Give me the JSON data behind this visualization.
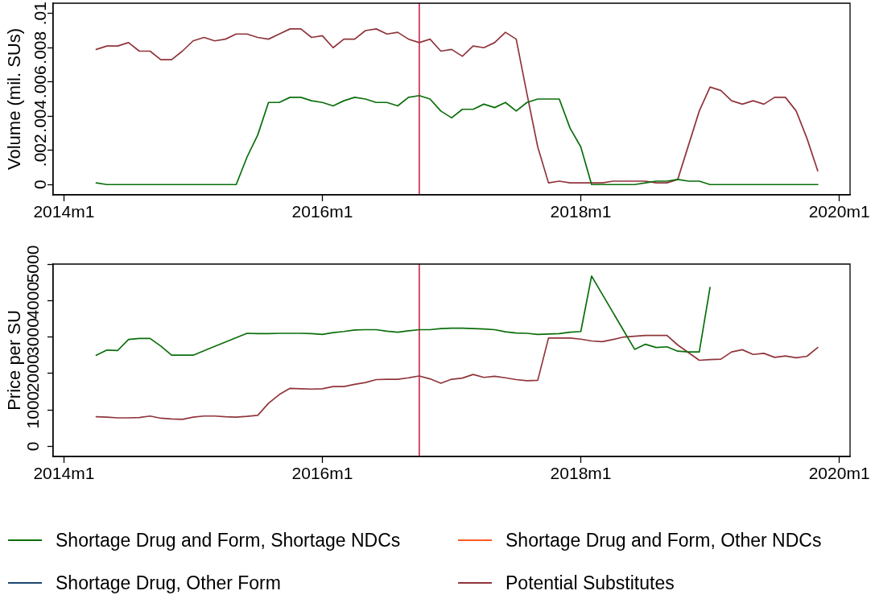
{
  "chart_data": [
    {
      "type": "line",
      "ylabel": "Volume (mil. SUs)",
      "x": [
        "2014-04",
        "2014-05",
        "2014-06",
        "2014-07",
        "2014-08",
        "2014-09",
        "2014-10",
        "2014-11",
        "2014-12",
        "2015-01",
        "2015-02",
        "2015-03",
        "2015-04",
        "2015-05",
        "2015-06",
        "2015-07",
        "2015-08",
        "2015-09",
        "2015-10",
        "2015-11",
        "2015-12",
        "2016-01",
        "2016-02",
        "2016-03",
        "2016-04",
        "2016-05",
        "2016-06",
        "2016-07",
        "2016-08",
        "2016-09",
        "2016-10",
        "2016-11",
        "2016-12",
        "2017-01",
        "2017-02",
        "2017-03",
        "2017-04",
        "2017-05",
        "2017-06",
        "2017-07",
        "2017-08",
        "2017-09",
        "2017-10",
        "2017-11",
        "2017-12",
        "2018-01",
        "2018-02",
        "2018-03",
        "2018-04",
        "2018-05",
        "2018-06",
        "2018-07",
        "2018-08",
        "2018-09",
        "2018-10",
        "2018-11",
        "2018-12",
        "2019-01",
        "2019-02",
        "2019-03",
        "2019-04",
        "2019-05",
        "2019-06",
        "2019-07",
        "2019-08",
        "2019-09",
        "2019-10",
        "2019-11"
      ],
      "xlim": [
        "2013-12",
        "2020-02"
      ],
      "xticks": [
        {
          "value": "2014-01",
          "label": "2014m1"
        },
        {
          "value": "2016-01",
          "label": "2016m1"
        },
        {
          "value": "2018-01",
          "label": "2018m1"
        },
        {
          "value": "2020-01",
          "label": "2020m1"
        }
      ],
      "ylim": [
        -0.0006,
        0.0106
      ],
      "yticks": [
        0,
        {
          "value": 0.002,
          "label": ".002"
        },
        {
          "value": 0.004,
          "label": ".004"
        },
        {
          "value": 0.006,
          "label": ".006"
        },
        {
          "value": 0.008,
          "label": ".008"
        },
        {
          "value": 0.01,
          "label": ".01"
        }
      ],
      "ref_lines": [
        {
          "axis": "x",
          "value": "2016-10",
          "color": "#c8143c"
        }
      ],
      "series": [
        {
          "color": "#0a6e0a",
          "values": [
            0.0001,
            0,
            0,
            0,
            0,
            0,
            0,
            0,
            0,
            0,
            0,
            0,
            0,
            0,
            0.0016,
            0.0029,
            0.0048,
            0.0048,
            0.0051,
            0.0051,
            0.0049,
            0.0048,
            0.0046,
            0.0049,
            0.0051,
            0.005,
            0.0048,
            0.0048,
            0.0046,
            0.0051,
            0.0052,
            0.005,
            0.0043,
            0.0039,
            0.0044,
            0.0044,
            0.0047,
            0.0045,
            0.0048,
            0.0043,
            0.0048,
            0.005,
            0.005,
            0.005,
            0.0033,
            0.0022,
            0,
            0,
            0,
            0,
            0,
            0.0001,
            0.0002,
            0.0002,
            0.0003,
            0.0002,
            0.0002,
            0,
            0,
            0,
            0,
            0,
            0,
            0,
            0,
            0,
            0,
            0
          ]
        },
        {
          "color": "#90353b",
          "values": [
            0.0079,
            0.0081,
            0.0081,
            0.0083,
            0.0078,
            0.0078,
            0.0073,
            0.0073,
            0.0078,
            0.0084,
            0.0086,
            0.0084,
            0.0085,
            0.0088,
            0.0088,
            0.0086,
            0.0085,
            0.0088,
            0.0091,
            0.0091,
            0.0086,
            0.0087,
            0.008,
            0.0085,
            0.0085,
            0.009,
            0.0091,
            0.0088,
            0.0089,
            0.0085,
            0.0083,
            0.0085,
            0.0078,
            0.0079,
            0.0075,
            0.0081,
            0.008,
            0.0083,
            0.0089,
            0.0085,
            0.0053,
            0.0022,
            0.0001,
            0.0002,
            0.0001,
            0.0001,
            0.0001,
            0.0001,
            0.0002,
            0.0002,
            0.0002,
            0.0002,
            0.0001,
            0.0001,
            0.0003,
            0.0023,
            0.0043,
            0.0057,
            0.0055,
            0.0049,
            0.0047,
            0.0049,
            0.0047,
            0.0051,
            0.0051,
            0.0043,
            0.0027,
            0.0008
          ]
        }
      ]
    },
    {
      "type": "line",
      "ylabel": "Price per SU",
      "legend": "bottom",
      "x": [
        "2014-04",
        "2014-05",
        "2014-06",
        "2014-07",
        "2014-08",
        "2014-09",
        "2014-10",
        "2014-11",
        "2014-12",
        "2015-01",
        "2015-02",
        "2015-03",
        "2015-04",
        "2015-05",
        "2015-06",
        "2015-07",
        "2015-08",
        "2015-09",
        "2015-10",
        "2015-11",
        "2015-12",
        "2016-01",
        "2016-02",
        "2016-03",
        "2016-04",
        "2016-05",
        "2016-06",
        "2016-07",
        "2016-08",
        "2016-09",
        "2016-10",
        "2016-11",
        "2016-12",
        "2017-01",
        "2017-02",
        "2017-03",
        "2017-04",
        "2017-05",
        "2017-06",
        "2017-07",
        "2017-08",
        "2017-09",
        "2017-10",
        "2017-11",
        "2017-12",
        "2018-01",
        "2018-02",
        "2018-03",
        "2018-04",
        "2018-05",
        "2018-06",
        "2018-07",
        "2018-08",
        "2018-09",
        "2018-10",
        "2018-11",
        "2018-12",
        "2019-01",
        "2019-02",
        "2019-03",
        "2019-04",
        "2019-05",
        "2019-06",
        "2019-07",
        "2019-08",
        "2019-09",
        "2019-10",
        "2019-11"
      ],
      "xlim": [
        "2013-12",
        "2020-02"
      ],
      "xticks": [
        {
          "value": "2014-01",
          "label": "2014m1"
        },
        {
          "value": "2016-01",
          "label": "2016m1"
        },
        {
          "value": "2018-01",
          "label": "2018m1"
        },
        {
          "value": "2020-01",
          "label": "2020m1"
        }
      ],
      "ylim": [
        -280,
        5000
      ],
      "yticks": [
        0,
        1000,
        2000,
        3000,
        4000,
        5000
      ],
      "ref_lines": [
        {
          "axis": "x",
          "value": "2016-10",
          "color": "#c8143c"
        }
      ],
      "series": [
        {
          "name": "Shortage Drug and Form, Shortage NDCs",
          "color": "#0a6e0a",
          "values": [
            2500,
            2640,
            2630,
            2930,
            2960,
            2960,
            2750,
            2500,
            2500,
            2500,
            null,
            null,
            null,
            null,
            3100,
            3090,
            3090,
            3100,
            3100,
            3100,
            3090,
            3070,
            3120,
            3150,
            3190,
            3200,
            3200,
            3160,
            3130,
            3170,
            3200,
            3200,
            3230,
            3240,
            3240,
            3230,
            3220,
            3200,
            3140,
            3110,
            3100,
            3070,
            3080,
            3090,
            3130,
            3150,
            4670,
            null,
            null,
            null,
            2660,
            2800,
            2710,
            2730,
            2610,
            2590,
            2590,
            4360,
            null,
            null,
            null,
            null,
            null,
            null,
            null,
            null,
            null,
            null
          ]
        },
        {
          "name": "Shortage Drug and Form, Other NDCs",
          "color": "#ff5a1f",
          "values": [
            null,
            null,
            null,
            null,
            null,
            null,
            null,
            null,
            null,
            null,
            null,
            null,
            null,
            null,
            null,
            null,
            null,
            null,
            null,
            null,
            null,
            null,
            null,
            null,
            null,
            null,
            null,
            null,
            null,
            null,
            null,
            null,
            null,
            null,
            null,
            null,
            null,
            null,
            null,
            null,
            null,
            null,
            null,
            null,
            null,
            null,
            null,
            null,
            null,
            null,
            null,
            null,
            null,
            null,
            null,
            null,
            null,
            null,
            null,
            null,
            null,
            null,
            null,
            null,
            null,
            null,
            null,
            null
          ]
        },
        {
          "name": "Shortage Drug, Other Form",
          "color": "#1a476f",
          "values": [
            null,
            null,
            null,
            null,
            null,
            null,
            null,
            null,
            null,
            null,
            null,
            null,
            null,
            null,
            null,
            null,
            null,
            null,
            null,
            null,
            null,
            null,
            null,
            null,
            null,
            null,
            null,
            null,
            null,
            null,
            null,
            null,
            null,
            null,
            null,
            null,
            null,
            null,
            null,
            null,
            null,
            null,
            null,
            null,
            null,
            null,
            null,
            null,
            null,
            null,
            null,
            null,
            null,
            null,
            null,
            null,
            null,
            null,
            null,
            null,
            null,
            null,
            null,
            null,
            null,
            null,
            null,
            null
          ]
        },
        {
          "name": "Potential Substitutes",
          "color": "#90353b",
          "values": [
            810,
            800,
            780,
            780,
            790,
            830,
            770,
            750,
            740,
            800,
            830,
            830,
            810,
            800,
            820,
            850,
            1180,
            1420,
            1590,
            1580,
            1570,
            1580,
            1640,
            1640,
            1700,
            1750,
            1830,
            1840,
            1840,
            1880,
            1930,
            1850,
            1730,
            1840,
            1870,
            1970,
            1890,
            1920,
            1880,
            1830,
            1800,
            1810,
            2970,
            2970,
            2970,
            2940,
            2890,
            2870,
            2930,
            3000,
            3020,
            3040,
            3040,
            3040,
            2780,
            2570,
            2360,
            2380,
            2390,
            2590,
            2650,
            2520,
            2550,
            2440,
            2480,
            2430,
            2470,
            2710
          ]
        }
      ]
    }
  ]
}
